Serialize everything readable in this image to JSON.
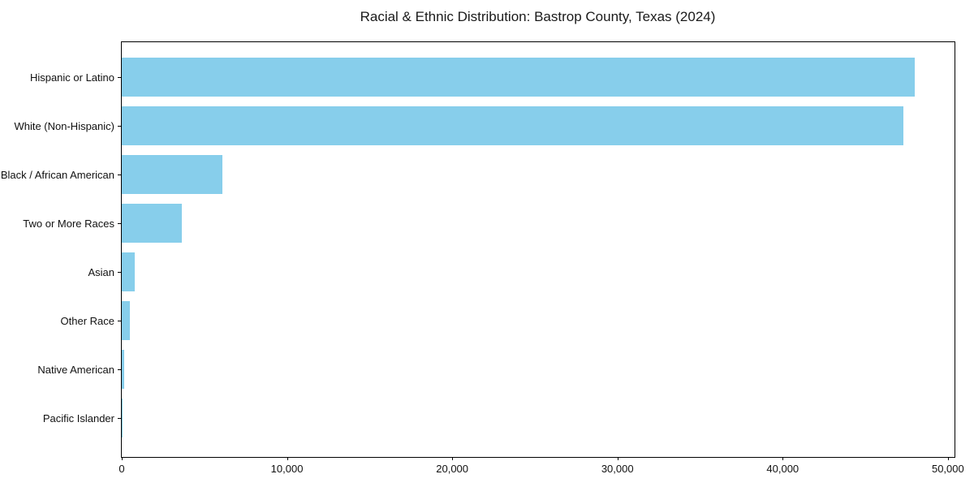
{
  "chart_data": {
    "type": "bar",
    "orientation": "horizontal",
    "title": "Racial & Ethnic Distribution: Bastrop County, Texas (2024)",
    "categories": [
      "Hispanic or Latino",
      "White (Non-Hispanic)",
      "Black / African American",
      "Two or More Races",
      "Asian",
      "Other Race",
      "Native American",
      "Pacific Islander"
    ],
    "values": [
      48000,
      47300,
      6100,
      3650,
      800,
      500,
      160,
      30
    ],
    "xlabel": "",
    "ylabel": "",
    "xlim": [
      0,
      50400
    ],
    "xticks": [
      0,
      10000,
      20000,
      30000,
      40000,
      50000
    ],
    "xtick_labels": [
      "0",
      "10,000",
      "20,000",
      "30,000",
      "40,000",
      "50,000"
    ],
    "bar_color": "#87CEEB",
    "grid": false,
    "legend": null,
    "ytick_direction": "out",
    "bars_sorted": "descending"
  }
}
